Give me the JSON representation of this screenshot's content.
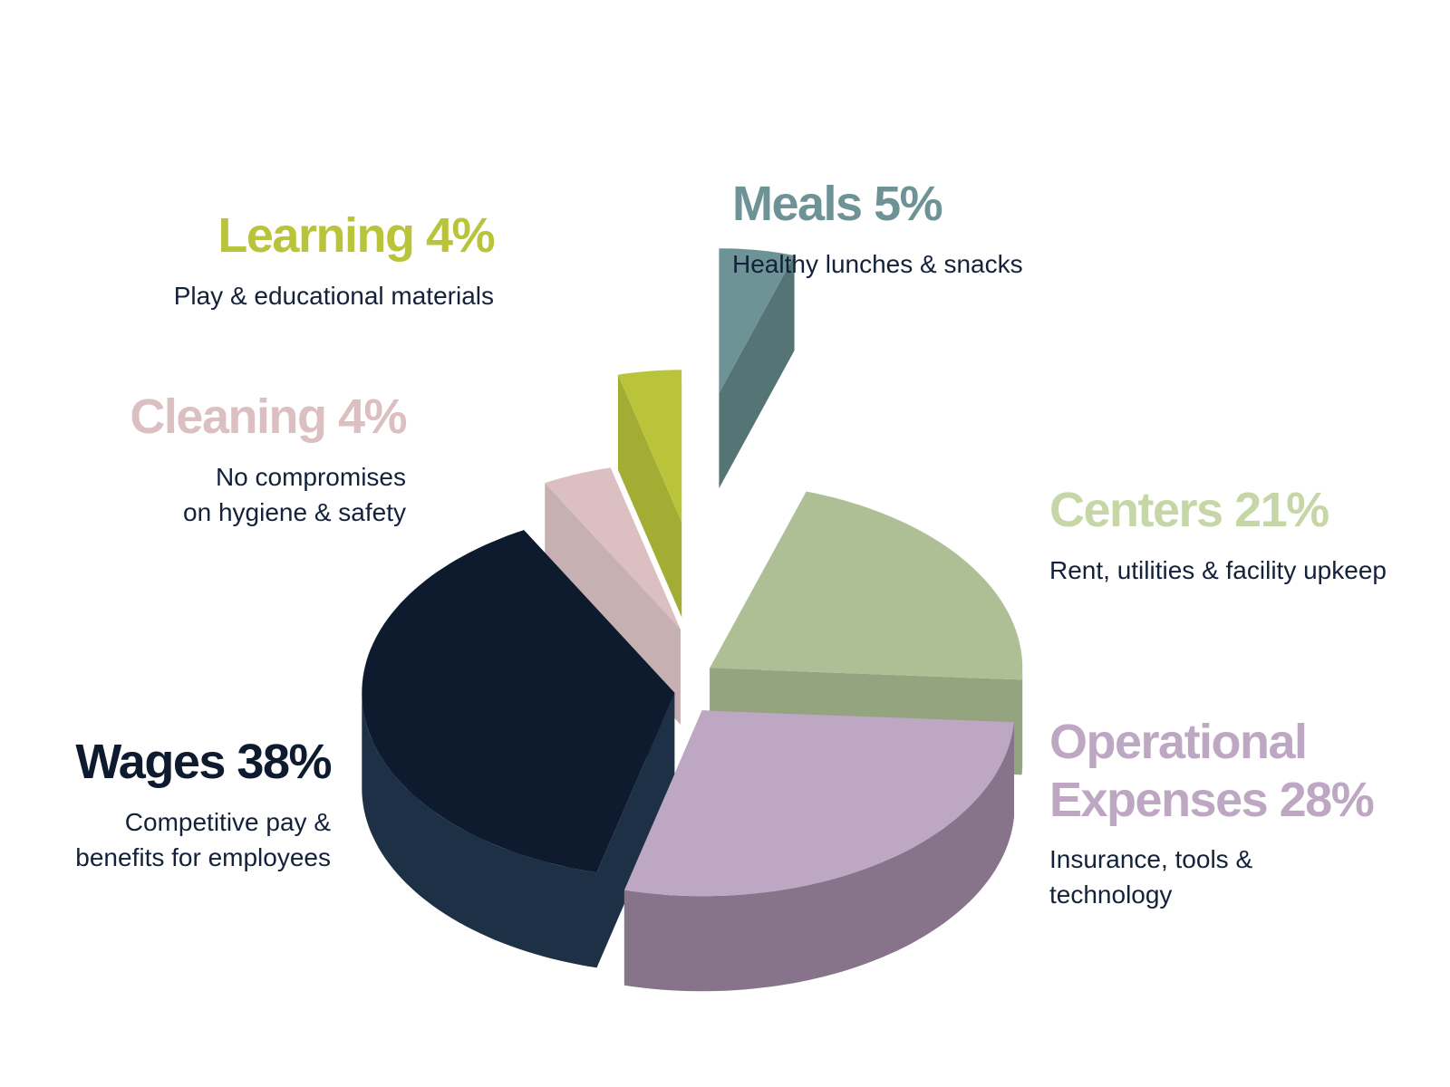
{
  "chart_data": {
    "type": "pie",
    "title": "",
    "slices": [
      {
        "key": "meals",
        "label": "Meals",
        "percent_label": "5%",
        "value": 5,
        "description_lines": [
          "Healthy lunches & snacks"
        ],
        "color": "#6e9396",
        "side_color": "#557476",
        "label_color": "#6e9396"
      },
      {
        "key": "centers",
        "label": "Centers",
        "percent_label": "21%",
        "value": 21,
        "description_lines": [
          "Rent, utilities & facility upkeep"
        ],
        "color": "#aebe95",
        "side_color": "#93a47f",
        "label_color": "#c6d6a6"
      },
      {
        "key": "operational",
        "label": "Operational Expenses",
        "label_lines": [
          "Operational",
          "Expenses 28%"
        ],
        "percent_label": "28%",
        "value": 28,
        "description_lines": [
          "Insurance, tools &",
          "technology"
        ],
        "color": "#bea7c2",
        "side_color": "#87738a",
        "label_color": "#bea7c2"
      },
      {
        "key": "wages",
        "label": "Wages",
        "percent_label": "38%",
        "value": 38,
        "description_lines": [
          "Competitive pay &",
          "benefits for employees"
        ],
        "color": "#0e1b2e",
        "side_color": "#1d3045",
        "label_color": "#0e1b2e"
      },
      {
        "key": "cleaning",
        "label": "Cleaning",
        "percent_label": "4%",
        "value": 4,
        "description_lines": [
          "No compromises",
          "on hygiene & safety"
        ],
        "color": "#dbbfc1",
        "side_color": "#c6b0b2",
        "label_color": "#dbbfc1"
      },
      {
        "key": "learning",
        "label": "Learning",
        "percent_label": "4%",
        "value": 4,
        "description_lines": [
          "Play & educational materials"
        ],
        "color": "#bac43a",
        "side_color": "#a4ad33",
        "label_color": "#bac43a"
      }
    ],
    "legend": "none"
  }
}
